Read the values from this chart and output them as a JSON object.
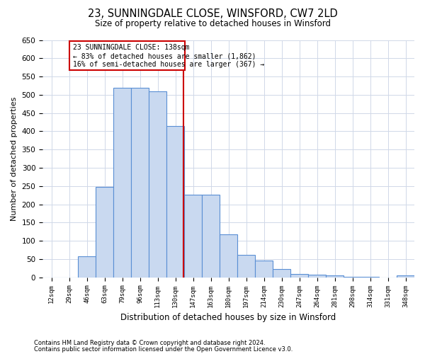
{
  "title": "23, SUNNINGDALE CLOSE, WINSFORD, CW7 2LD",
  "subtitle": "Size of property relative to detached houses in Winsford",
  "xlabel": "Distribution of detached houses by size in Winsford",
  "ylabel": "Number of detached properties",
  "footnote1": "Contains HM Land Registry data © Crown copyright and database right 2024.",
  "footnote2": "Contains public sector information licensed under the Open Government Licence v3.0.",
  "annotation_title": "23 SUNNINGDALE CLOSE: 138sqm",
  "annotation_line1": "← 83% of detached houses are smaller (1,862)",
  "annotation_line2": "16% of semi-detached houses are larger (367) →",
  "bar_color": "#c9d9f0",
  "bar_edge_color": "#5a8fd4",
  "grid_color": "#d0d8e8",
  "annotation_line_color": "#cc0000",
  "annotation_box_color": "#cc0000",
  "categories": [
    "12sqm",
    "29sqm",
    "46sqm",
    "63sqm",
    "79sqm",
    "96sqm",
    "113sqm",
    "130sqm",
    "147sqm",
    "163sqm",
    "180sqm",
    "197sqm",
    "214sqm",
    "230sqm",
    "247sqm",
    "264sqm",
    "281sqm",
    "298sqm",
    "314sqm",
    "331sqm",
    "348sqm"
  ],
  "values": [
    0,
    0,
    58,
    248,
    520,
    520,
    510,
    415,
    226,
    226,
    118,
    62,
    46,
    22,
    10,
    8,
    5,
    2,
    1,
    0,
    5
  ],
  "ylim": [
    0,
    650
  ],
  "yticks": [
    0,
    50,
    100,
    150,
    200,
    250,
    300,
    350,
    400,
    450,
    500,
    550,
    600,
    650
  ],
  "figwidth": 6.0,
  "figheight": 5.0,
  "dpi": 100
}
